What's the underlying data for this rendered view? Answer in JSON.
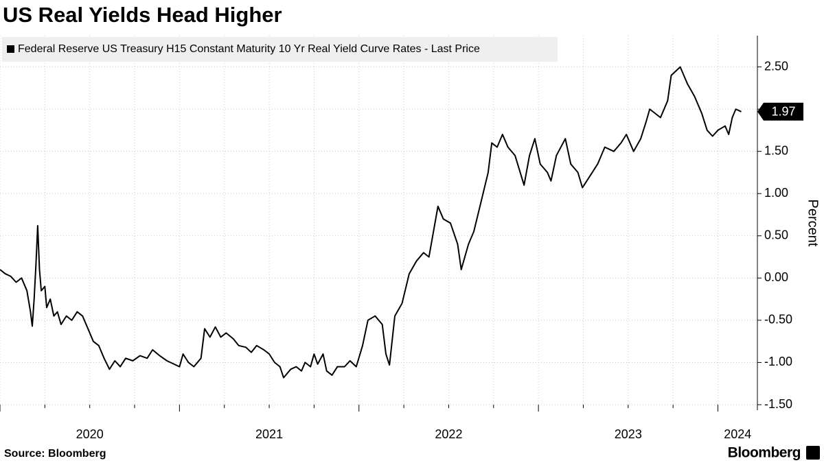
{
  "chart_data": {
    "type": "line",
    "title": "US Real Yields Head Higher",
    "y_label": "Percent",
    "source": "Source: Bloomberg",
    "brand": "Bloomberg",
    "x": [
      2020.0,
      2020.03,
      2020.06,
      2020.09,
      2020.12,
      2020.15,
      2020.17,
      2020.18,
      2020.19,
      2020.2,
      2020.21,
      2020.22,
      2020.23,
      2020.25,
      2020.26,
      2020.28,
      2020.3,
      2020.32,
      2020.34,
      2020.37,
      2020.4,
      2020.43,
      2020.46,
      2020.49,
      2020.52,
      2020.55,
      2020.58,
      2020.61,
      2020.64,
      2020.67,
      2020.7,
      2020.74,
      2020.78,
      2020.82,
      2020.85,
      2020.89,
      2020.93,
      2020.97,
      2021.0,
      2021.02,
      2021.05,
      2021.08,
      2021.12,
      2021.14,
      2021.17,
      2021.2,
      2021.23,
      2021.26,
      2021.3,
      2021.33,
      2021.37,
      2021.4,
      2021.43,
      2021.47,
      2021.5,
      2021.53,
      2021.56,
      2021.58,
      2021.62,
      2021.65,
      2021.68,
      2021.7,
      2021.73,
      2021.75,
      2021.77,
      2021.8,
      2021.82,
      2021.85,
      2021.88,
      2021.92,
      2021.95,
      2021.985,
      2022.02,
      2022.05,
      2022.09,
      2022.13,
      2022.15,
      2022.17,
      2022.2,
      2022.24,
      2022.28,
      2022.32,
      2022.36,
      2022.39,
      2022.44,
      2022.47,
      2022.51,
      2022.55,
      2022.57,
      2022.61,
      2022.64,
      2022.68,
      2022.72,
      2022.74,
      2022.77,
      2022.8,
      2022.83,
      2022.87,
      2022.92,
      2022.95,
      2022.98,
      2023.01,
      2023.05,
      2023.07,
      2023.1,
      2023.15,
      2023.18,
      2023.22,
      2023.245,
      2023.3,
      2023.33,
      2023.37,
      2023.42,
      2023.46,
      2023.49,
      2023.53,
      2023.57,
      2023.6,
      2023.62,
      2023.68,
      2023.72,
      2023.74,
      2023.79,
      2023.83,
      2023.87,
      2023.91,
      2023.94,
      2023.97,
      2024.0,
      2024.04,
      2024.06,
      2024.08,
      2024.1,
      2024.13
    ],
    "series": [
      {
        "name": "Federal Reserve US Treasury H15 Constant Maturity 10 Yr Real Yield Curve Rates - Last Price",
        "color": "#000000",
        "values": [
          0.1,
          0.05,
          0.02,
          -0.05,
          0.0,
          -0.15,
          -0.4,
          -0.57,
          -0.25,
          0.15,
          0.62,
          0.1,
          -0.15,
          -0.1,
          -0.35,
          -0.25,
          -0.45,
          -0.4,
          -0.55,
          -0.45,
          -0.5,
          -0.4,
          -0.45,
          -0.6,
          -0.75,
          -0.8,
          -0.95,
          -1.08,
          -0.98,
          -1.05,
          -0.95,
          -0.98,
          -0.92,
          -0.95,
          -0.85,
          -0.92,
          -0.98,
          -1.02,
          -1.05,
          -0.9,
          -1.0,
          -1.05,
          -0.95,
          -0.6,
          -0.7,
          -0.58,
          -0.7,
          -0.65,
          -0.72,
          -0.8,
          -0.82,
          -0.88,
          -0.8,
          -0.85,
          -0.9,
          -1.0,
          -1.05,
          -1.18,
          -1.08,
          -1.05,
          -1.1,
          -1.0,
          -1.05,
          -0.9,
          -1.02,
          -0.9,
          -1.1,
          -1.15,
          -1.05,
          -1.05,
          -0.98,
          -1.05,
          -0.8,
          -0.5,
          -0.45,
          -0.55,
          -0.9,
          -1.03,
          -0.45,
          -0.3,
          0.05,
          0.2,
          0.3,
          0.25,
          0.85,
          0.7,
          0.65,
          0.4,
          0.1,
          0.4,
          0.55,
          0.9,
          1.25,
          1.6,
          1.55,
          1.7,
          1.55,
          1.45,
          1.1,
          1.45,
          1.65,
          1.35,
          1.25,
          1.15,
          1.45,
          1.65,
          1.35,
          1.25,
          1.07,
          1.25,
          1.35,
          1.55,
          1.5,
          1.6,
          1.7,
          1.5,
          1.65,
          1.85,
          2.0,
          1.9,
          2.1,
          2.4,
          2.5,
          2.3,
          2.15,
          1.95,
          1.75,
          1.68,
          1.75,
          1.8,
          1.7,
          1.9,
          2.0,
          1.97
        ]
      }
    ],
    "xlim": [
      2020,
      2024.22
    ],
    "xticks": [
      {
        "value": 2020,
        "label": "2020"
      },
      {
        "value": 2021,
        "label": "2021"
      },
      {
        "value": 2022,
        "label": "2022"
      },
      {
        "value": 2023,
        "label": "2023"
      },
      {
        "value": 2024,
        "label": "2024"
      }
    ],
    "xminor": [
      2019.75,
      2020.25,
      2020.5,
      2020.75,
      2021.25,
      2021.5,
      2021.75,
      2022.25,
      2022.5,
      2022.75,
      2023.25,
      2023.5,
      2023.75
    ],
    "ylim": [
      -1.5,
      2.87
    ],
    "yticks": [
      {
        "value": -1.5,
        "label": "-1.50"
      },
      {
        "value": -1,
        "label": "-1.00"
      },
      {
        "value": -0.5,
        "label": "-0.50"
      },
      {
        "value": 0,
        "label": "0.00"
      },
      {
        "value": 0.5,
        "label": "0.50"
      },
      {
        "value": 1,
        "label": "1.00"
      },
      {
        "value": 1.5,
        "label": "1.50"
      },
      {
        "value": 2,
        "label": "2.00"
      },
      {
        "value": 2.5,
        "label": "2.50"
      }
    ],
    "grid": true,
    "legend": "top-left"
  }
}
